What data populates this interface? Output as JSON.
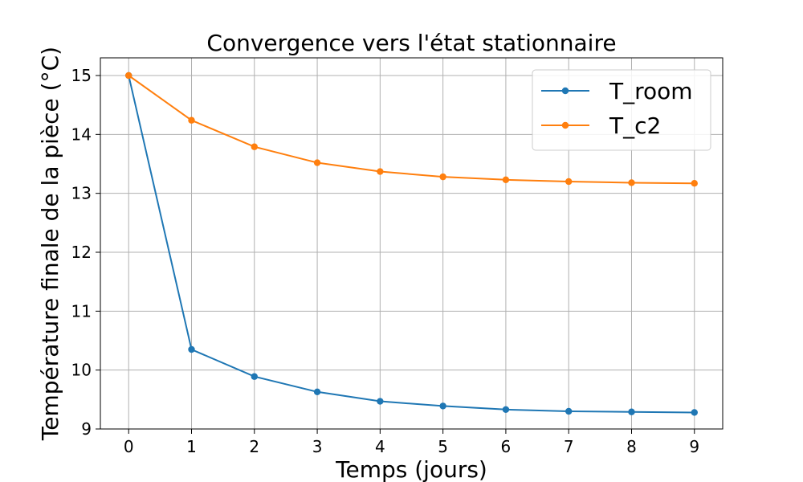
{
  "chart_data": {
    "type": "line",
    "title": "Convergence vers l'état stationnaire",
    "xlabel": "Temps (jours)",
    "ylabel": "Température finale de la pièce (°C)",
    "xlim": [
      -0.45,
      9.45
    ],
    "ylim": [
      9.0,
      15.3
    ],
    "x": [
      0,
      1,
      2,
      3,
      4,
      5,
      6,
      7,
      8,
      9
    ],
    "xticks": [
      0,
      1,
      2,
      3,
      4,
      5,
      6,
      7,
      8,
      9
    ],
    "yticks": [
      9,
      10,
      11,
      12,
      13,
      14,
      15
    ],
    "grid": true,
    "legend_position": "top-right",
    "series": [
      {
        "name": "T_room",
        "color": "#1f77b4",
        "marker": "circle",
        "values": [
          15.0,
          10.35,
          9.89,
          9.63,
          9.47,
          9.39,
          9.33,
          9.3,
          9.29,
          9.28
        ]
      },
      {
        "name": "T_c2",
        "color": "#ff7f0e",
        "marker": "circle",
        "values": [
          15.0,
          14.24,
          13.79,
          13.52,
          13.37,
          13.28,
          13.23,
          13.2,
          13.18,
          13.17
        ]
      }
    ]
  }
}
